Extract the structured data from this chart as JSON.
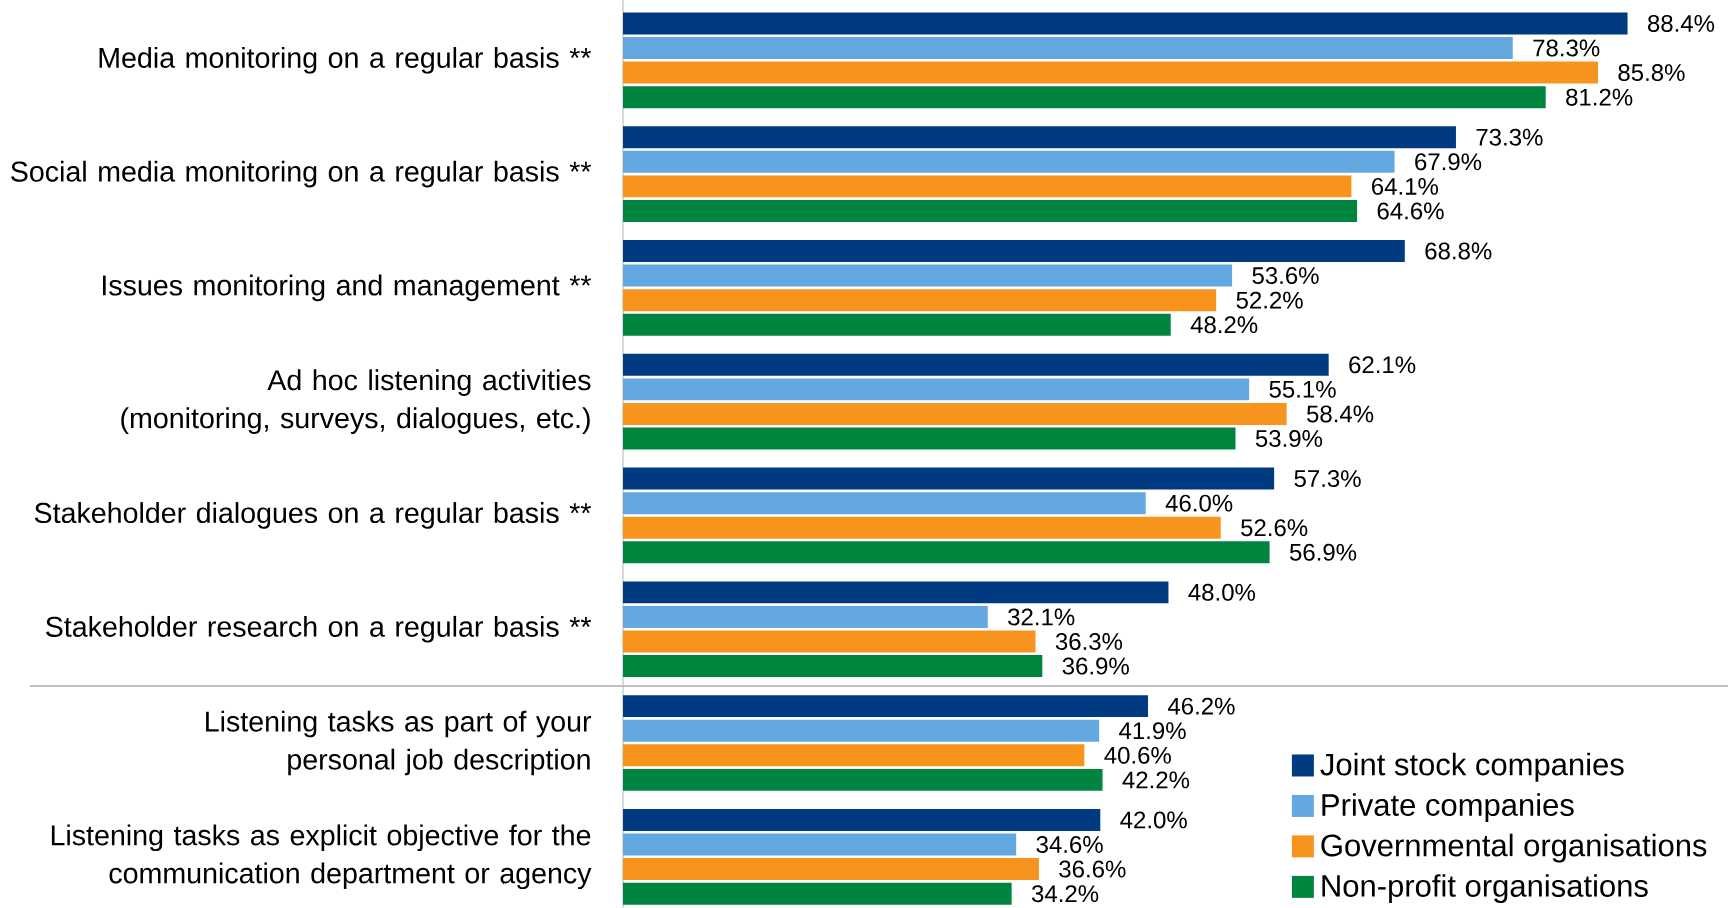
{
  "chart_data": {
    "type": "bar",
    "orientation": "horizontal",
    "categories": [
      "Media monitoring on a regular basis **",
      "Social media monitoring on a regular basis **",
      "Issues monitoring and management **",
      "Ad hoc listening activities\n(monitoring, surveys, dialogues, etc.)",
      "Stakeholder dialogues on a regular basis **",
      "Stakeholder research on a regular basis **",
      "Listening tasks as part of your\npersonal job description",
      "Listening tasks as explicit objective for the\ncommunication department or agency"
    ],
    "series": [
      {
        "name": "Joint stock companies",
        "color": "#003a80",
        "values": [
          88.4,
          73.3,
          68.8,
          62.1,
          57.3,
          48.0,
          46.2,
          42.0
        ],
        "value_labels": [
          "88.4%",
          "73.3%",
          "68.8%",
          "62.1%",
          "57.3%",
          "48.0%",
          "46.2%",
          "42.0%"
        ]
      },
      {
        "name": "Private companies",
        "color": "#63a8e0",
        "values": [
          78.3,
          67.9,
          53.6,
          55.1,
          46.0,
          32.1,
          41.9,
          34.6
        ],
        "value_labels": [
          "78.3%",
          "67.9%",
          "53.6%",
          "55.1%",
          "46.0%",
          "32.1%",
          "41.9%",
          "34.6%"
        ]
      },
      {
        "name": "Governmental organisations",
        "color": "#f7941d",
        "values": [
          85.8,
          64.1,
          52.2,
          58.4,
          52.6,
          36.3,
          40.6,
          36.6
        ],
        "value_labels": [
          "85.8%",
          "64.1%",
          "52.2%",
          "58.4%",
          "52.6%",
          "36.3%",
          "40.6%",
          "36.6%"
        ]
      },
      {
        "name": "Non-profit organisations",
        "color": "#008540",
        "values": [
          81.2,
          64.6,
          48.2,
          53.9,
          56.9,
          36.9,
          42.2,
          34.2
        ],
        "value_labels": [
          "81.2%",
          "64.6%",
          "48.2%",
          "53.9%",
          "56.9%",
          "36.9%",
          "42.2%",
          "34.2%"
        ]
      }
    ],
    "legend": "bottom right",
    "tick_labels": "y"
  }
}
